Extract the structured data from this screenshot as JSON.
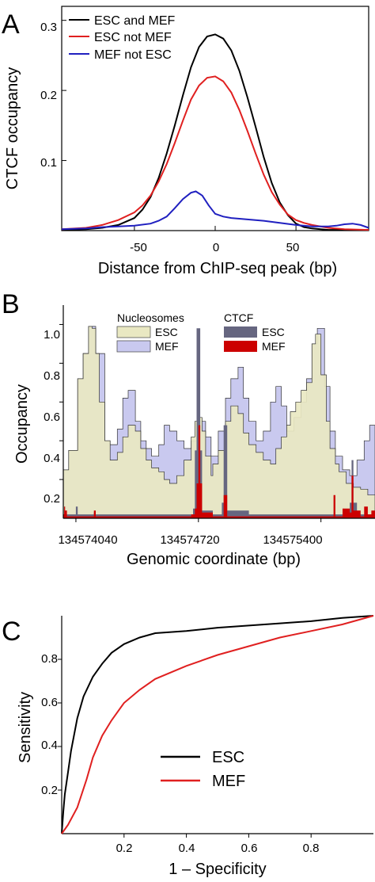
{
  "chart_data": [
    {
      "panel": "A",
      "type": "line",
      "xlabel": "Distance from ChIP-seq peak (bp)",
      "ylabel": "CTCF occupancy",
      "xlim": [
        -95,
        95
      ],
      "ylim": [
        0,
        0.32
      ],
      "xticks": [
        -50,
        0,
        50
      ],
      "yticks": [
        0.1,
        0.2,
        0.3
      ],
      "legend_position": "top-left",
      "series": [
        {
          "name": "ESC and MEF",
          "color": "#000000",
          "x": [
            -95,
            -80,
            -70,
            -60,
            -50,
            -45,
            -40,
            -35,
            -30,
            -25,
            -20,
            -15,
            -10,
            -5,
            0,
            5,
            10,
            15,
            20,
            25,
            30,
            35,
            40,
            45,
            50,
            55,
            60,
            70,
            80,
            95
          ],
          "y": [
            0.001,
            0.002,
            0.004,
            0.008,
            0.018,
            0.03,
            0.048,
            0.075,
            0.11,
            0.15,
            0.193,
            0.233,
            0.262,
            0.277,
            0.28,
            0.274,
            0.257,
            0.228,
            0.19,
            0.148,
            0.105,
            0.068,
            0.04,
            0.022,
            0.01,
            0.005,
            0.003,
            0.001,
            0.001,
            0.001
          ]
        },
        {
          "name": "ESC not MEF",
          "color": "#e02020",
          "x": [
            -95,
            -80,
            -70,
            -60,
            -50,
            -45,
            -40,
            -35,
            -30,
            -25,
            -20,
            -15,
            -10,
            -5,
            0,
            5,
            10,
            15,
            20,
            25,
            30,
            35,
            40,
            45,
            50,
            55,
            60,
            70,
            80,
            95
          ],
          "y": [
            0.002,
            0.004,
            0.008,
            0.015,
            0.026,
            0.036,
            0.05,
            0.07,
            0.095,
            0.125,
            0.157,
            0.187,
            0.207,
            0.218,
            0.22,
            0.213,
            0.197,
            0.172,
            0.142,
            0.11,
            0.08,
            0.055,
            0.037,
            0.023,
            0.015,
            0.011,
            0.008,
            0.004,
            0.002,
            0.001
          ]
        },
        {
          "name": "MEF not ESC",
          "color": "#2020c0",
          "x": [
            -95,
            -80,
            -70,
            -60,
            -50,
            -40,
            -35,
            -30,
            -25,
            -20,
            -15,
            -12,
            -8,
            -4,
            0,
            5,
            10,
            20,
            30,
            40,
            50,
            60,
            70,
            75,
            80,
            85,
            90,
            95
          ],
          "y": [
            0.002,
            0.003,
            0.005,
            0.006,
            0.007,
            0.01,
            0.014,
            0.02,
            0.032,
            0.045,
            0.054,
            0.056,
            0.05,
            0.036,
            0.024,
            0.02,
            0.018,
            0.016,
            0.014,
            0.011,
            0.008,
            0.006,
            0.006,
            0.007,
            0.009,
            0.01,
            0.008,
            0.004
          ]
        }
      ]
    },
    {
      "panel": "B",
      "type": "area",
      "xlabel": "Genomic coordinate (bp)",
      "ylabel": "Occupancy",
      "xlim": [
        134573970,
        134575700
      ],
      "ylim": [
        0,
        1.1
      ],
      "xticks": [
        134574040,
        134574720,
        134575400
      ],
      "yticks": [
        0.2,
        0.4,
        0.6,
        0.8,
        1.0
      ],
      "legend_headers": [
        "Nucleosomes",
        "CTCF"
      ],
      "legend_position": "top",
      "series": [
        {
          "name": "ESC",
          "group": "Nucleosomes",
          "color": "#e9e8c2",
          "x": [
            134573970,
            134574000,
            134574050,
            134574080,
            134574110,
            134574130,
            134574150,
            134574170,
            134574200,
            134574230,
            134574270,
            134574300,
            134574330,
            134574370,
            134574400,
            134574430,
            134574460,
            134574500,
            134574530,
            134574560,
            134574600,
            134574640,
            134574680,
            134574700,
            134574720,
            134574740,
            134574760,
            134574790,
            134574800,
            134574830,
            134574870,
            134574900,
            134574940,
            134574970,
            134575000,
            134575040,
            134575080,
            134575120,
            134575150,
            134575180,
            134575210,
            134575230,
            134575260,
            134575290,
            134575320,
            134575350,
            134575370,
            134575400,
            134575430,
            134575450,
            134575480,
            134575500,
            134575540,
            134575580,
            134575620,
            134575660,
            134575700
          ],
          "y": [
            0.25,
            0.35,
            0.72,
            0.85,
            0.99,
            0.98,
            0.85,
            0.6,
            0.4,
            0.3,
            0.34,
            0.42,
            0.48,
            0.45,
            0.36,
            0.3,
            0.26,
            0.24,
            0.2,
            0.18,
            0.22,
            0.3,
            0.42,
            0.5,
            0.52,
            0.45,
            0.32,
            0.22,
            0.28,
            0.35,
            0.5,
            0.58,
            0.54,
            0.44,
            0.38,
            0.34,
            0.3,
            0.28,
            0.36,
            0.42,
            0.48,
            0.55,
            0.6,
            0.66,
            0.7,
            0.9,
            0.95,
            0.74,
            0.5,
            0.36,
            0.28,
            0.24,
            0.18,
            0.16,
            0.15,
            0.12,
            0.1
          ]
        },
        {
          "name": "MEF",
          "group": "Nucleosomes",
          "color": "#c9c9ef",
          "x": [
            134573970,
            134574000,
            134574050,
            134574080,
            134574110,
            134574150,
            134574200,
            134574230,
            134574270,
            134574300,
            134574330,
            134574370,
            134574400,
            134574430,
            134574460,
            134574500,
            134574530,
            134574560,
            134574600,
            134574640,
            134574680,
            134574720,
            134574760,
            134574790,
            134574830,
            134574870,
            134574900,
            134574940,
            134574970,
            134575000,
            134575040,
            134575080,
            134575120,
            134575150,
            134575180,
            134575210,
            134575250,
            134575290,
            134575320,
            134575350,
            134575380,
            134575420,
            134575450,
            134575480,
            134575520,
            134575560,
            134575600,
            134575640,
            134575670,
            134575700
          ],
          "y": [
            0.25,
            0.35,
            0.72,
            0.85,
            0.99,
            0.85,
            0.4,
            0.38,
            0.46,
            0.62,
            0.66,
            0.5,
            0.4,
            0.36,
            0.32,
            0.38,
            0.48,
            0.45,
            0.4,
            0.36,
            0.4,
            0.5,
            0.42,
            0.32,
            0.45,
            0.62,
            0.72,
            0.78,
            0.62,
            0.5,
            0.4,
            0.45,
            0.6,
            0.68,
            0.58,
            0.45,
            0.52,
            0.6,
            0.72,
            0.9,
            0.98,
            0.68,
            0.45,
            0.32,
            0.25,
            0.22,
            0.3,
            0.4,
            0.48,
            0.4
          ]
        },
        {
          "name": "ESC",
          "group": "CTCF",
          "color": "#666680",
          "x": [
            134573970,
            134574020,
            134574040,
            134574050,
            134574100,
            134574130,
            134574140,
            134574150,
            134574300,
            134574600,
            134574690,
            134574700,
            134574710,
            134574720,
            134574730,
            134574740,
            134574800,
            134574840,
            134574850,
            134574860,
            134574870,
            134574880,
            134575000,
            134575500,
            134575560,
            134575570,
            134575580,
            134575600,
            134575700
          ],
          "y": [
            0.02,
            0.02,
            0.06,
            0.02,
            0.02,
            0.02,
            0.03,
            0.02,
            0.02,
            0.02,
            0.05,
            0.35,
            0.98,
            0.98,
            0.35,
            0.04,
            0.02,
            0.02,
            0.08,
            0.48,
            0.48,
            0.04,
            0.02,
            0.02,
            0.08,
            0.3,
            0.08,
            0.02,
            0.02
          ]
        },
        {
          "name": "MEF",
          "group": "CTCF",
          "color": "#cc0000",
          "x": [
            134573970,
            134573975,
            134573980,
            134573990,
            134574000,
            134574100,
            134574130,
            134574140,
            134574150,
            134574300,
            134574600,
            134574680,
            134574700,
            134574710,
            134574720,
            134574730,
            134574740,
            134574800,
            134574850,
            134574860,
            134574870,
            134574880,
            134575000,
            134575450,
            134575470,
            134575480,
            134575500,
            134575520,
            134575560,
            134575570,
            134575580,
            134575620,
            134575640,
            134575660,
            134575680,
            134575700
          ],
          "y": [
            0.02,
            0.06,
            0.04,
            0.01,
            0.01,
            0.01,
            0.01,
            0.04,
            0.01,
            0.01,
            0.01,
            0.02,
            0.05,
            0.18,
            0.48,
            0.18,
            0.03,
            0.01,
            0.01,
            0.12,
            0.12,
            0.01,
            0.01,
            0.01,
            0.12,
            0.01,
            0.01,
            0.05,
            0.03,
            0.22,
            0.04,
            0.01,
            0.06,
            0.02,
            0.04,
            0.01
          ]
        }
      ]
    },
    {
      "panel": "C",
      "type": "line",
      "xlabel": "1 – Specificity",
      "ylabel": "Sensitivity",
      "xlim": [
        0,
        1
      ],
      "ylim": [
        0,
        1
      ],
      "xticks": [
        0.2,
        0.4,
        0.6,
        0.8
      ],
      "yticks": [
        0.2,
        0.4,
        0.6,
        0.8
      ],
      "legend_position": "lower-right",
      "series": [
        {
          "name": "ESC",
          "color": "#000000",
          "x": [
            0,
            0.005,
            0.01,
            0.02,
            0.03,
            0.05,
            0.07,
            0.1,
            0.13,
            0.16,
            0.2,
            0.25,
            0.3,
            0.4,
            0.5,
            0.6,
            0.7,
            0.8,
            0.9,
            1.0
          ],
          "y": [
            0,
            0.1,
            0.18,
            0.28,
            0.38,
            0.53,
            0.63,
            0.72,
            0.78,
            0.83,
            0.87,
            0.9,
            0.92,
            0.93,
            0.945,
            0.955,
            0.965,
            0.975,
            0.99,
            1.0
          ]
        },
        {
          "name": "MEF",
          "color": "#e02020",
          "x": [
            0,
            0.02,
            0.05,
            0.08,
            0.1,
            0.13,
            0.16,
            0.2,
            0.25,
            0.3,
            0.4,
            0.5,
            0.6,
            0.7,
            0.8,
            0.9,
            1.0
          ],
          "y": [
            0,
            0.04,
            0.12,
            0.25,
            0.35,
            0.45,
            0.52,
            0.6,
            0.66,
            0.71,
            0.77,
            0.82,
            0.86,
            0.9,
            0.93,
            0.96,
            1.0
          ]
        }
      ]
    }
  ],
  "panels": {
    "a": {
      "letter": "A",
      "xlabel": "Distance from ChIP-seq peak (bp)",
      "ylabel": "CTCF occupancy",
      "xtick_labels": [
        "-50",
        "0",
        "50"
      ],
      "ytick_labels": [
        "0.1",
        "0.2",
        "0.3"
      ],
      "legend": [
        "ESC and MEF",
        "ESC not MEF",
        "MEF not ESC"
      ]
    },
    "b": {
      "letter": "B",
      "xlabel": "Genomic coordinate (bp)",
      "ylabel": "Occupancy",
      "xtick_labels": [
        "134574040",
        "134574720",
        "134575400"
      ],
      "ytick_labels": [
        "0.2",
        "0.4",
        "0.6",
        "0.8",
        "1.0"
      ],
      "legend_headers": [
        "Nucleosomes",
        "CTCF"
      ],
      "legend": [
        "ESC",
        "MEF",
        "ESC",
        "MEF"
      ]
    },
    "c": {
      "letter": "C",
      "xlabel": "1 – Specificity",
      "ylabel": "Sensitivity",
      "xtick_labels": [
        "0.2",
        "0.4",
        "0.6",
        "0.8"
      ],
      "ytick_labels": [
        "0.2",
        "0.4",
        "0.6",
        "0.8"
      ],
      "legend": [
        "ESC",
        "MEF"
      ]
    }
  }
}
